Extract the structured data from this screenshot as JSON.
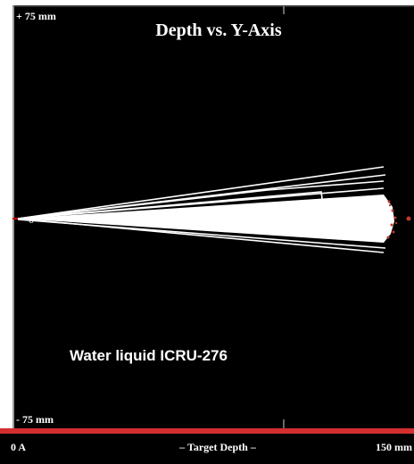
{
  "plot": {
    "title": "Depth vs. Y-Axis",
    "y_top_label": "+ 75 mm",
    "y_bottom_label": "- 75 mm",
    "origin_label": "0",
    "target_label": "Water liquid ICRU-276"
  },
  "x_axis": {
    "start_label": "0 A",
    "center_label": "– Target Depth –",
    "end_label": "150 mm"
  }
}
